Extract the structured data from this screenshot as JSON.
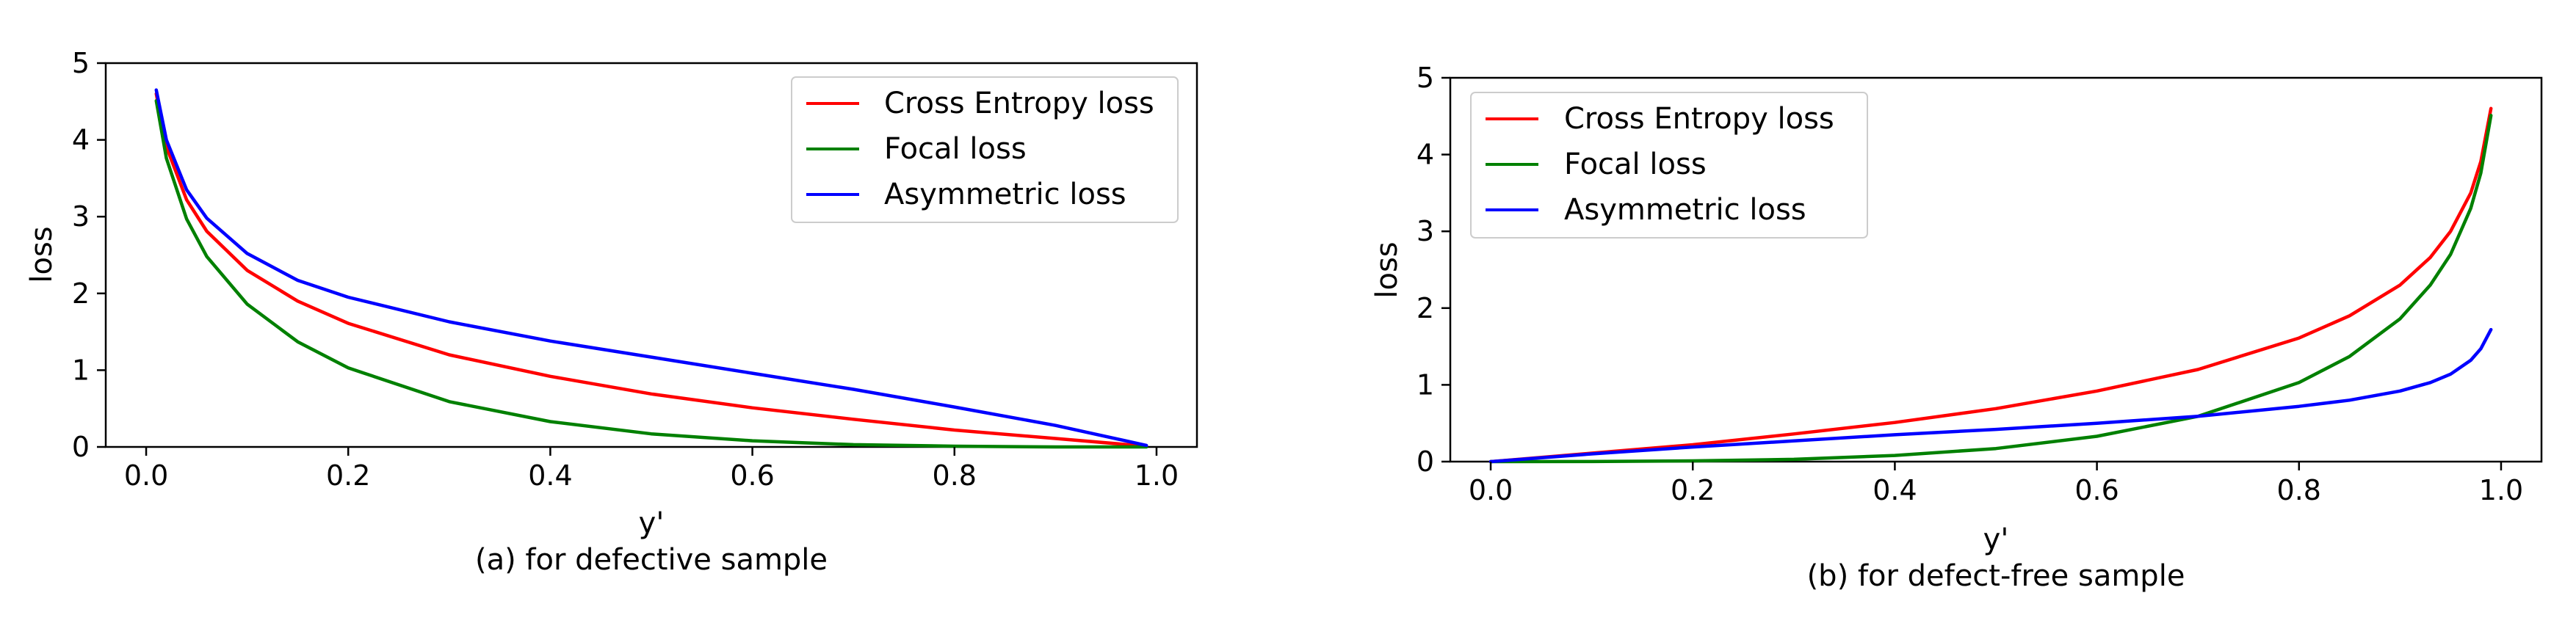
{
  "chart_data": [
    {
      "type": "line",
      "caption": "(a) for defective sample",
      "xlabel": "y'",
      "ylabel": "loss",
      "xlim": [
        -0.04,
        1.04
      ],
      "ylim": [
        0,
        5
      ],
      "xticks": [
        "0.0",
        "0.2",
        "0.4",
        "0.6",
        "0.8",
        "1.0"
      ],
      "yticks": [
        "0",
        "1",
        "2",
        "3",
        "4",
        "5"
      ],
      "legend_position": "top-right",
      "series": [
        {
          "name": "Cross Entropy loss",
          "color": "#ff0000",
          "x": [
            0.01,
            0.02,
            0.04,
            0.06,
            0.1,
            0.15,
            0.2,
            0.3,
            0.4,
            0.5,
            0.6,
            0.7,
            0.8,
            0.9,
            0.99
          ],
          "y": [
            4.6,
            3.91,
            3.22,
            2.81,
            2.3,
            1.9,
            1.61,
            1.2,
            0.92,
            0.69,
            0.51,
            0.36,
            0.22,
            0.11,
            0.01
          ]
        },
        {
          "name": "Focal loss",
          "color": "#008000",
          "x": [
            0.01,
            0.02,
            0.04,
            0.06,
            0.1,
            0.15,
            0.2,
            0.3,
            0.4,
            0.5,
            0.6,
            0.7,
            0.8,
            0.9,
            0.99
          ],
          "y": [
            4.51,
            3.76,
            2.97,
            2.48,
            1.86,
            1.37,
            1.03,
            0.59,
            0.33,
            0.17,
            0.08,
            0.03,
            0.01,
            0.0,
            0.0
          ]
        },
        {
          "name": "Asymmetric loss",
          "color": "#0000ff",
          "x": [
            0.01,
            0.02,
            0.04,
            0.06,
            0.1,
            0.15,
            0.2,
            0.3,
            0.4,
            0.5,
            0.6,
            0.7,
            0.8,
            0.9,
            0.99
          ],
          "y": [
            4.65,
            4.0,
            3.35,
            2.98,
            2.52,
            2.17,
            1.95,
            1.63,
            1.38,
            1.17,
            0.96,
            0.75,
            0.52,
            0.28,
            0.02
          ]
        }
      ]
    },
    {
      "type": "line",
      "caption": "(b) for defect-free sample",
      "xlabel": "y'",
      "ylabel": "loss",
      "xlim": [
        -0.04,
        1.04
      ],
      "ylim": [
        0,
        5
      ],
      "xticks": [
        "0.0",
        "0.2",
        "0.4",
        "0.6",
        "0.8",
        "1.0"
      ],
      "yticks": [
        "0",
        "1",
        "2",
        "3",
        "4",
        "5"
      ],
      "legend_position": "top-left",
      "series": [
        {
          "name": "Cross Entropy loss",
          "color": "#ff0000",
          "x": [
            0.0,
            0.1,
            0.2,
            0.3,
            0.4,
            0.5,
            0.6,
            0.7,
            0.8,
            0.85,
            0.9,
            0.93,
            0.95,
            0.97,
            0.98,
            0.99
          ],
          "y": [
            0.0,
            0.11,
            0.22,
            0.36,
            0.51,
            0.69,
            0.92,
            1.2,
            1.61,
            1.9,
            2.3,
            2.66,
            3.0,
            3.5,
            3.91,
            4.6
          ]
        },
        {
          "name": "Focal loss",
          "color": "#008000",
          "x": [
            0.0,
            0.1,
            0.2,
            0.3,
            0.4,
            0.5,
            0.6,
            0.7,
            0.8,
            0.85,
            0.9,
            0.93,
            0.95,
            0.97,
            0.98,
            0.99
          ],
          "y": [
            0.0,
            0.001,
            0.01,
            0.03,
            0.08,
            0.17,
            0.33,
            0.59,
            1.03,
            1.37,
            1.86,
            2.3,
            2.7,
            3.3,
            3.76,
            4.51
          ]
        },
        {
          "name": "Asymmetric loss",
          "color": "#0000ff",
          "x": [
            0.0,
            0.1,
            0.2,
            0.3,
            0.4,
            0.5,
            0.6,
            0.7,
            0.8,
            0.85,
            0.9,
            0.93,
            0.95,
            0.97,
            0.98,
            0.99
          ],
          "y": [
            0.0,
            0.1,
            0.19,
            0.27,
            0.35,
            0.42,
            0.5,
            0.59,
            0.72,
            0.8,
            0.92,
            1.03,
            1.14,
            1.32,
            1.47,
            1.72
          ]
        }
      ]
    }
  ]
}
